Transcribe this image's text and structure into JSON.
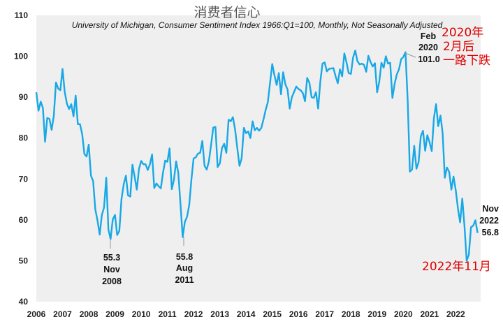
{
  "chart_data": {
    "type": "line",
    "title": "消费者信心",
    "subtitle": "University of Michigan, Consumer Sentiment Index 1966:Q1=100, Monthly, Not Seasonally Adjusted",
    "xlabel": "",
    "ylabel": "",
    "ylim": [
      40,
      110
    ],
    "xlim": [
      2006.0,
      2022.95
    ],
    "y_ticks": [
      "40",
      "50",
      "60",
      "70",
      "80",
      "90",
      "100",
      "110"
    ],
    "x_ticks": [
      "2006",
      "2007",
      "2008",
      "2009",
      "2010",
      "2011",
      "2012",
      "2013",
      "2014",
      "2015",
      "2016",
      "2017",
      "2018",
      "2019",
      "2020",
      "2021",
      "2022"
    ],
    "grid": false,
    "line_color": "#18a8e6",
    "plot_background": "#efefef",
    "annotation_color": "#e00000",
    "series": [
      {
        "values": [
          91.2,
          86.7,
          88.9,
          87.4,
          79.1,
          84.9,
          84.7,
          82.0,
          85.4,
          93.6,
          92.1,
          91.7,
          96.9,
          91.3,
          88.4,
          87.1,
          88.3,
          85.3,
          90.4,
          83.4,
          83.4,
          80.9,
          76.1,
          75.5,
          78.4,
          70.8,
          69.5,
          62.6,
          59.8,
          56.4,
          61.2,
          63.0,
          70.3,
          57.6,
          55.3,
          60.1,
          61.2,
          56.3,
          57.3,
          65.1,
          68.7,
          70.8,
          66.0,
          65.7,
          73.5,
          70.6,
          67.4,
          72.5,
          74.4,
          73.6,
          73.6,
          72.2,
          73.6,
          76.0,
          67.8,
          68.9,
          68.2,
          67.7,
          71.6,
          74.5,
          74.2,
          77.5,
          67.5,
          69.8,
          74.3,
          71.5,
          63.7,
          55.8,
          59.5,
          60.8,
          63.7,
          69.9,
          75.0,
          75.3,
          76.2,
          76.4,
          79.3,
          73.2,
          72.3,
          74.3,
          78.3,
          82.6,
          82.7,
          72.9,
          73.8,
          77.6,
          78.6,
          76.4,
          84.5,
          84.1,
          85.1,
          82.1,
          77.5,
          73.2,
          75.1,
          82.5,
          81.2,
          81.6,
          80.0,
          84.1,
          81.9,
          82.5,
          81.8,
          82.5,
          84.6,
          86.9,
          88.8,
          93.6,
          98.1,
          95.4,
          93.0,
          95.9,
          90.7,
          96.1,
          93.1,
          91.9,
          87.2,
          90.0,
          91.3,
          92.6,
          92.0,
          91.7,
          91.0,
          89.0,
          94.7,
          93.5,
          90.0,
          89.8,
          91.2,
          87.2,
          93.8,
          98.2,
          98.5,
          96.3,
          96.9,
          97.0,
          97.1,
          95.1,
          93.4,
          96.8,
          95.1,
          100.7,
          98.5,
          95.9,
          95.7,
          99.7,
          101.4,
          98.8,
          98.0,
          98.2,
          97.9,
          96.2,
          100.1,
          98.6,
          97.5,
          98.3,
          91.2,
          93.8,
          98.4,
          97.2,
          100.0,
          98.2,
          98.4,
          89.8,
          93.2,
          95.5,
          96.8,
          99.3,
          99.8,
          101.0,
          89.1,
          71.8,
          72.3,
          78.1,
          72.5,
          74.1,
          80.4,
          81.8,
          76.9,
          80.7,
          79.0,
          76.8,
          84.9,
          88.3,
          82.9,
          85.5,
          81.2,
          70.3,
          72.8,
          71.7,
          67.4,
          70.6,
          67.2,
          62.8,
          59.4,
          65.2,
          58.4,
          50.0,
          51.5,
          58.2,
          58.6,
          59.9,
          56.8
        ]
      }
    ],
    "annotations": {
      "low_2008": {
        "value": "55.3",
        "month": "Nov",
        "year": "2008"
      },
      "low_2011": {
        "value": "55.8",
        "month": "Aug",
        "year": "2011"
      },
      "peak_2020": {
        "month": "Feb",
        "year": "2020",
        "value": "101.0"
      },
      "latest": {
        "month": "Nov",
        "year": "2022",
        "value": "56.8"
      },
      "red_note_1": "2020年",
      "red_note_2": "2月后",
      "red_note_3": "一路下跌",
      "red_note_low": "2022年11月"
    }
  }
}
